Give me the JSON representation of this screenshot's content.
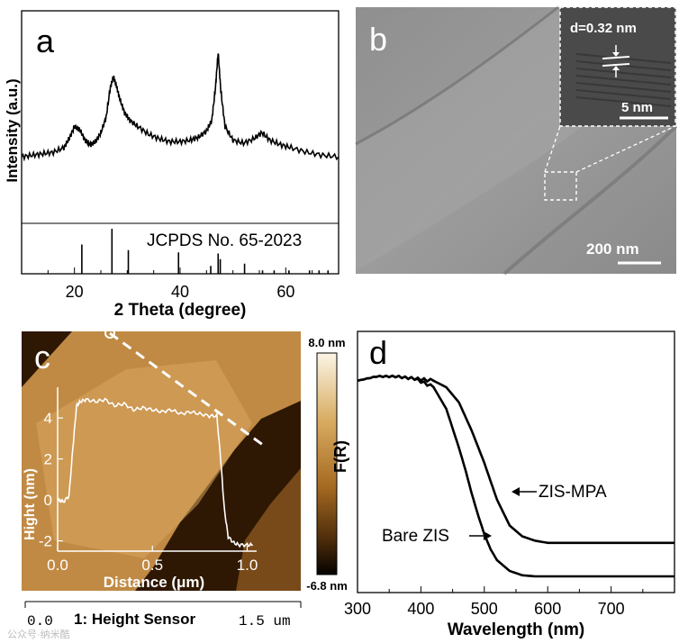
{
  "panel_a": {
    "label": "a",
    "ylabel": "Intensity (a.u.)",
    "xlabel": "2 Theta (degree)",
    "reference_label": "JCPDS No. 65-2023",
    "chart_data": {
      "type": "line",
      "title": "",
      "xlabel": "2 Theta (degree)",
      "ylabel": "Intensity (a.u.)",
      "xlim": [
        10,
        70
      ],
      "ylim": [
        0,
        100
      ],
      "xticks": [
        20,
        40,
        60
      ],
      "xticklabels": [
        "20",
        "40",
        "60"
      ],
      "series": [
        {
          "name": "XRD pattern",
          "x": [
            10,
            12,
            14,
            16,
            18,
            19,
            20,
            21,
            22,
            23,
            24,
            25,
            26,
            26.8,
            27.4,
            28,
            28.6,
            29.5,
            30.5,
            32,
            34,
            36,
            38,
            40,
            42,
            43.5,
            45,
            46,
            46.7,
            47.2,
            47.7,
            48.5,
            50,
            52,
            54,
            55.5,
            57,
            59,
            61,
            64,
            67,
            70
          ],
          "y": [
            44,
            45,
            46,
            47,
            50,
            56,
            64,
            62,
            55,
            52,
            54,
            60,
            70,
            90,
            97,
            90,
            82,
            73,
            68,
            64,
            59,
            56,
            54,
            54,
            55,
            57,
            61,
            68,
            90,
            113,
            88,
            64,
            55,
            53,
            56,
            60,
            55,
            52,
            50,
            47,
            45,
            44
          ]
        }
      ],
      "reference_lines": {
        "positions": [
          21.4,
          27.1,
          30.2,
          39.7,
          45.8,
          47.2,
          47.6,
          52.2,
          55.6,
          57.8,
          60.6,
          64.5,
          66.3,
          68.0
        ],
        "heights": [
          26,
          40,
          21,
          19,
          7,
          18,
          13,
          9,
          3,
          3,
          3,
          3,
          3,
          3
        ]
      }
    }
  },
  "panel_b": {
    "label": "b",
    "inset_d_spacing": "d=0.32 nm",
    "inset_scalebar": "5 nm",
    "scalebar": "200 nm"
  },
  "panel_c": {
    "label": "c",
    "colorbar_max": "8.0 nm",
    "colorbar_min": "-6.8 nm",
    "footer_left": "0.0",
    "footer_center": "1: Height Sensor",
    "footer_right": "1.5 um",
    "chart_data": {
      "type": "line",
      "title": "",
      "xlabel": "Distance (μm)",
      "ylabel": "Hight (nm)",
      "xlim": [
        0,
        1.05
      ],
      "ylim": [
        -2.5,
        5.5
      ],
      "xticks": [
        0.0,
        0.5,
        1.0
      ],
      "xticklabels": [
        "0.0",
        "0.5",
        "1.0"
      ],
      "yticks": [
        -2,
        0,
        2,
        4
      ],
      "yticklabels": [
        "-2",
        "0",
        "2",
        "4"
      ],
      "series": [
        {
          "name": "height profile",
          "x": [
            0.0,
            0.03,
            0.06,
            0.08,
            0.1,
            0.12,
            0.15,
            0.2,
            0.25,
            0.3,
            0.35,
            0.4,
            0.45,
            0.5,
            0.55,
            0.6,
            0.65,
            0.7,
            0.75,
            0.8,
            0.84,
            0.86,
            0.88,
            0.9,
            0.93,
            0.96,
            1.0,
            1.03
          ],
          "y": [
            0.0,
            -0.1,
            0.2,
            2.5,
            4.6,
            4.8,
            4.9,
            4.8,
            4.9,
            4.6,
            4.7,
            4.4,
            4.5,
            4.4,
            4.3,
            4.4,
            4.2,
            4.3,
            4.2,
            4.1,
            4.1,
            2.0,
            -0.5,
            -1.8,
            -2.1,
            -2.2,
            -2.2,
            -2.2
          ]
        }
      ]
    }
  },
  "panel_d": {
    "label": "d",
    "ylabel": "F(R)",
    "xlabel": "Wavelength (nm)",
    "chart_data": {
      "type": "line",
      "title": "",
      "xlabel": "Wavelength (nm)",
      "ylabel": "F(R)",
      "xlim": [
        300,
        800
      ],
      "ylim": [
        0,
        100
      ],
      "xticks": [
        300,
        400,
        500,
        600,
        700
      ],
      "xticklabels": [
        "300",
        "400",
        "500",
        "600",
        "700"
      ],
      "series": [
        {
          "name": "ZIS-MPA",
          "annotation": "ZIS-MPA",
          "x": [
            300,
            330,
            360,
            390,
            420,
            440,
            460,
            480,
            500,
            520,
            540,
            560,
            580,
            600,
            640,
            700,
            800
          ],
          "y": [
            93,
            95,
            95,
            94,
            93,
            90,
            83,
            70,
            55,
            38,
            26,
            21,
            19,
            18,
            18,
            18,
            18
          ]
        },
        {
          "name": "Bare ZIS",
          "annotation": "Bare ZIS",
          "x": [
            300,
            330,
            360,
            390,
            420,
            440,
            460,
            470,
            480,
            490,
            500,
            510,
            520,
            540,
            560,
            580,
            600,
            650,
            700,
            800
          ],
          "y": [
            93,
            95,
            95,
            94,
            90,
            80,
            62,
            52,
            41,
            31,
            22,
            15,
            10,
            5,
            3,
            2.5,
            2.5,
            2.5,
            2.5,
            2.5
          ]
        }
      ]
    }
  },
  "watermark": "公众号·纳米酷"
}
